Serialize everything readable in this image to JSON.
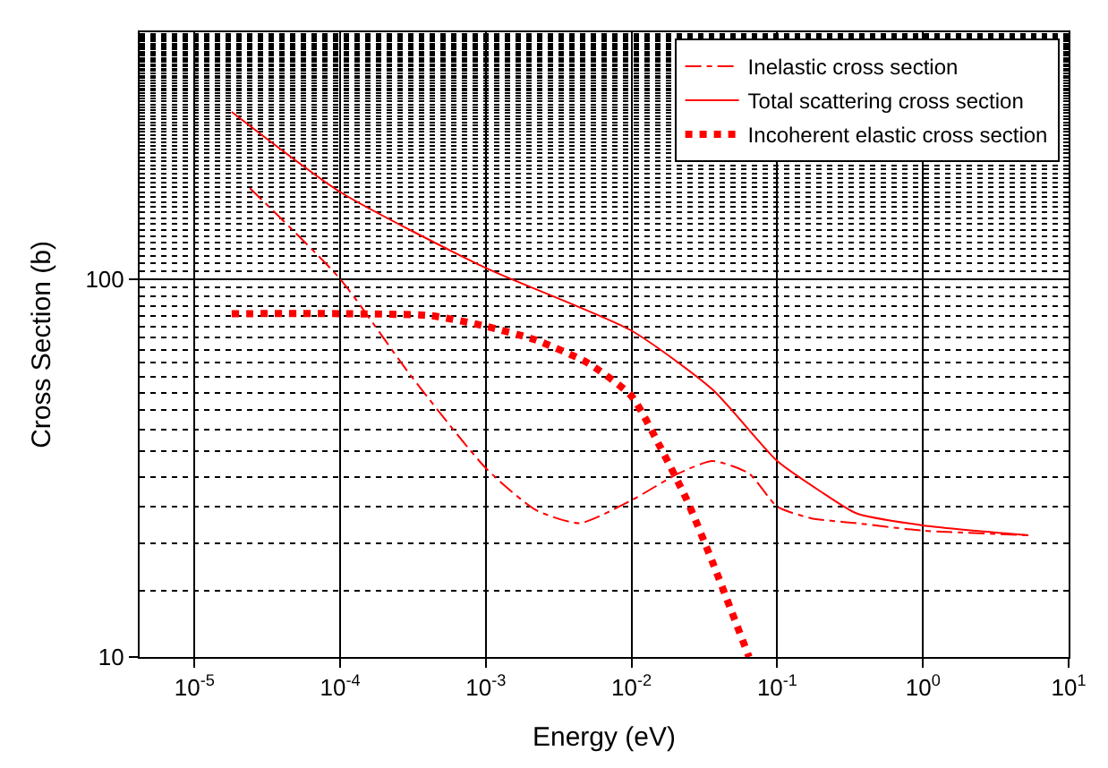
{
  "chart_data": {
    "type": "line",
    "xlabel": "Energy (eV)",
    "ylabel": "Cross Section (b)",
    "log": "xy",
    "grid": true,
    "legend": "top right",
    "marker": "none",
    "xlim": [
      4.2e-06,
      10
    ],
    "ylim": [
      10,
      450
    ],
    "xticks": [
      {
        "value": 1e-05,
        "label": "10$^{-5}$"
      },
      {
        "value": 0.0001,
        "label": "10$^{-4}$"
      },
      {
        "value": 0.001,
        "label": "10$^{-3}$"
      },
      {
        "value": 0.01,
        "label": "10$^{-2}$"
      },
      {
        "value": 0.1,
        "label": "10$^{-1}$"
      },
      {
        "value": 1,
        "label": "10$^{0}$"
      },
      {
        "value": 10,
        "label": "10$^{1}$"
      }
    ],
    "yticks": [
      10,
      100
    ],
    "series": [
      {
        "name": "Inelastic cross section",
        "color": "#ff0000",
        "line_style": "dashdot",
        "x": [
          2.4e-05,
          0.0001,
          0.0003,
          0.001,
          0.0022,
          0.0044,
          0.01,
          0.021,
          0.036,
          0.064,
          0.1,
          0.17,
          0.35,
          1,
          5.3
        ],
        "values": [
          174,
          100,
          56,
          31.6,
          24.5,
          22.6,
          26,
          30.6,
          33,
          30.6,
          25,
          23.3,
          22.6,
          21.6,
          21
        ]
      },
      {
        "name": "Total scattering cross section",
        "color": "#ff0000",
        "line_style": "solid",
        "x": [
          1.8e-05,
          0.0001,
          0.001,
          0.01,
          0.036,
          0.1,
          0.196,
          0.35,
          1,
          5.3
        ],
        "values": [
          277,
          170,
          107,
          73,
          51,
          33,
          27.5,
          24,
          22.3,
          21
        ]
      },
      {
        "name": "Incoherent elastic cross section",
        "color": "#ff0000",
        "line_style": "dotted",
        "x": [
          1.8e-05,
          0.0001,
          0.00042,
          0.001,
          0.0022,
          0.005,
          0.01,
          0.0157,
          0.024,
          0.036,
          0.064
        ],
        "values": [
          81,
          81,
          80,
          75,
          69,
          60,
          49,
          36,
          26,
          17.8,
          10
        ]
      }
    ]
  }
}
